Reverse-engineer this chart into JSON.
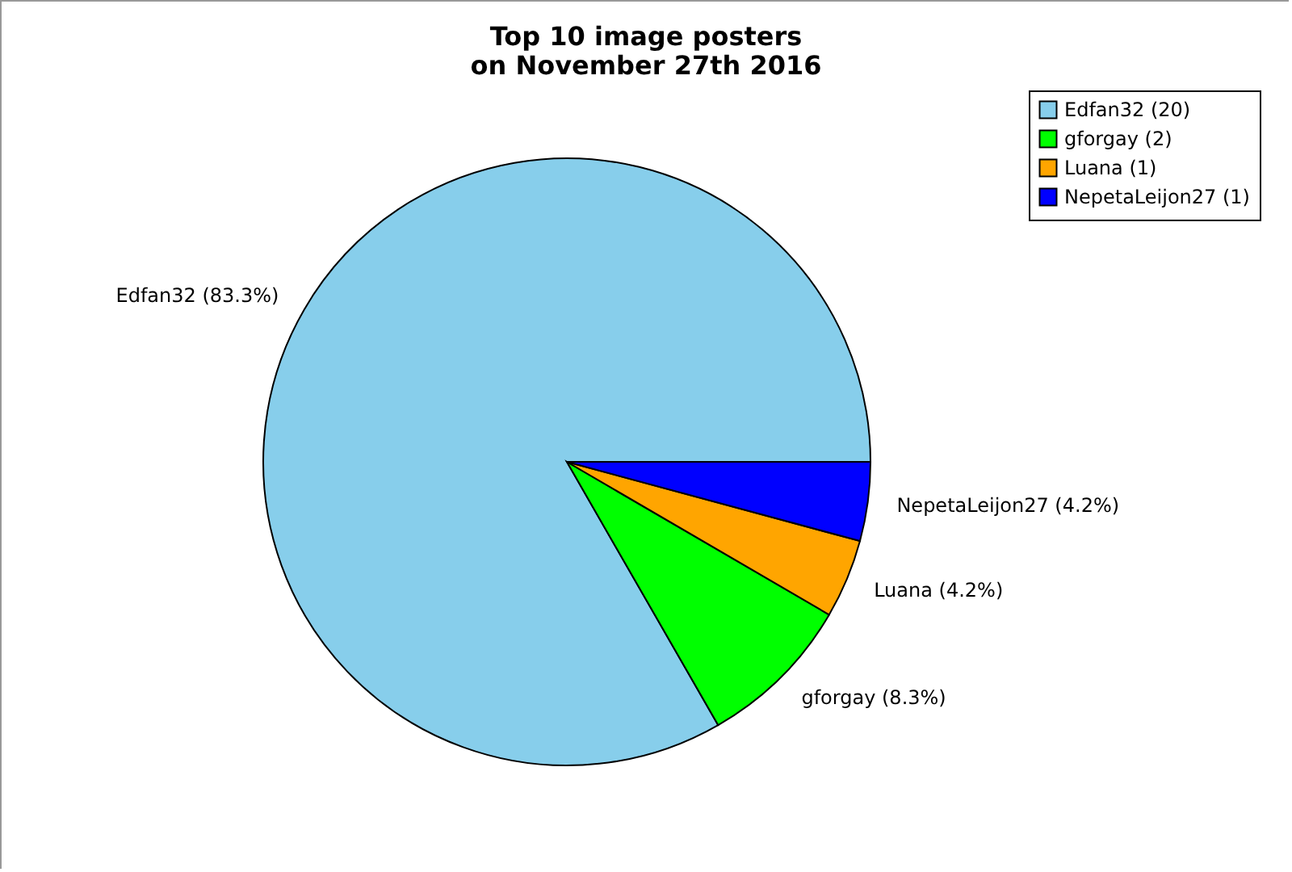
{
  "chart_data": {
    "type": "pie",
    "title": "Top 10 image posters\non November 27th 2016",
    "categories": [
      "Edfan32 (20)",
      "gforgay (2)",
      "Luana (1)",
      "NepetaLeijon27 (1)"
    ],
    "values": [
      83.3,
      8.3,
      4.2,
      4.2
    ],
    "colors": [
      "#87ceeb",
      "#00ff00",
      "#ffa500",
      "#0000ff"
    ],
    "value_labels": [
      "Edfan32 (83.3%)",
      "gforgay (8.3%)",
      "Luana (4.2%)",
      "NepetaLeijon27 (4.2%)"
    ],
    "legend": "top right"
  }
}
